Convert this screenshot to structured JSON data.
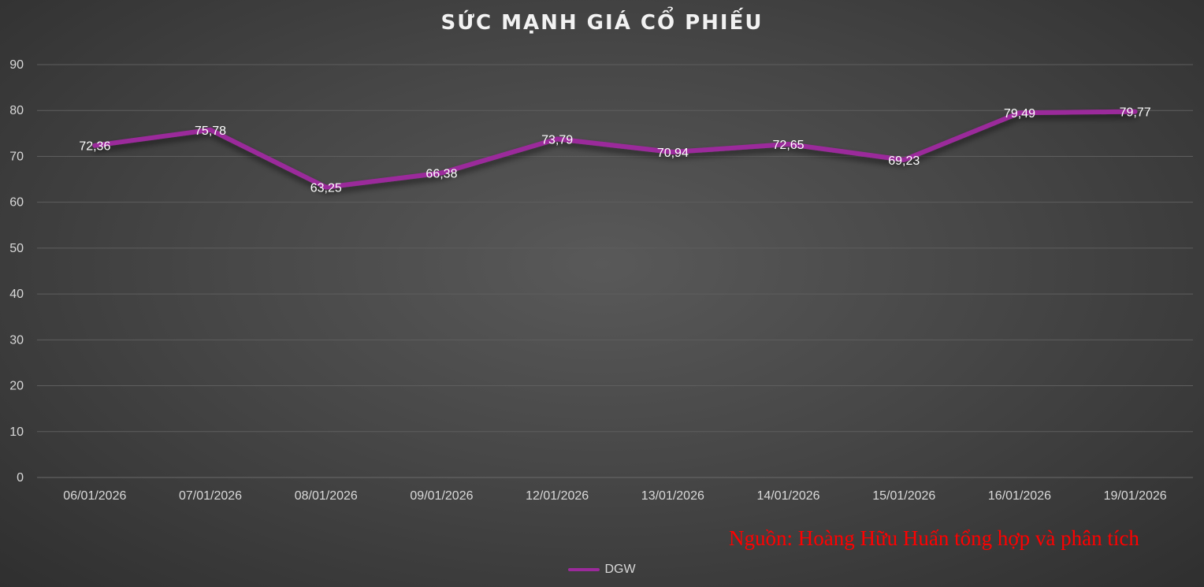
{
  "chart_data": {
    "type": "line",
    "title": "SỨC MẠNH GIÁ CỔ PHIẾU",
    "categories": [
      "06/01/2026",
      "07/01/2026",
      "08/01/2026",
      "09/01/2026",
      "12/01/2026",
      "13/01/2026",
      "14/01/2026",
      "15/01/2026",
      "16/01/2026",
      "19/01/2026"
    ],
    "series": [
      {
        "name": "DGW",
        "color": "#9b2a9b",
        "values": [
          72.36,
          75.78,
          63.25,
          66.38,
          73.79,
          70.94,
          72.65,
          69.23,
          79.49,
          79.77
        ],
        "labels": [
          "72,36",
          "75,78",
          "63,25",
          "66,38",
          "73,79",
          "70,94",
          "72,65",
          "69,23",
          "79,49",
          "79,77"
        ]
      }
    ],
    "ylim": [
      0,
      90
    ],
    "yticks": [
      0,
      10,
      20,
      30,
      40,
      50,
      60,
      70,
      80,
      90
    ],
    "grid": true,
    "legend_position": "bottom",
    "xlabel": "",
    "ylabel": ""
  },
  "source_note": "Nguồn: Hoàng Hữu Huấn tổng hợp và phân tích",
  "colors": {
    "line": "#9b2a9b",
    "source_note": "#ff0000",
    "grid": "#5e5e5e"
  }
}
